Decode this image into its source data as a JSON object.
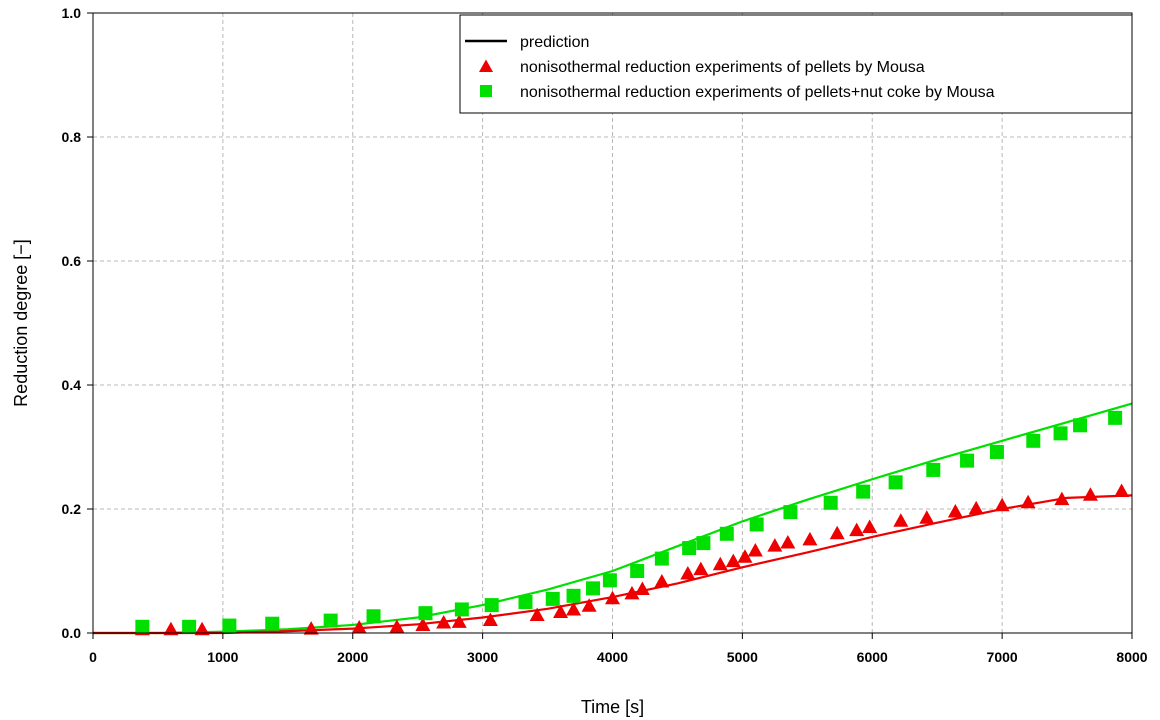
{
  "chart_data": {
    "type": "scatter",
    "xlabel": "Time [s]",
    "ylabel": "Reduction degree [−]",
    "xlim": [
      0,
      8000
    ],
    "ylim": [
      0,
      1.0
    ],
    "x_ticks": [
      0,
      1000,
      2000,
      3000,
      4000,
      5000,
      6000,
      7000,
      8000
    ],
    "x_tick_labels": [
      "0",
      "1000",
      "2000",
      "3000",
      "4000",
      "5000",
      "6000",
      "7000",
      "8000"
    ],
    "y_ticks": [
      0,
      0.2,
      0.4,
      0.6,
      0.8,
      1.0
    ],
    "y_tick_labels": [
      "0.0",
      "0.2",
      "0.4",
      "0.6",
      "0.8",
      "1.0"
    ],
    "grid": true,
    "legend_position": "top-right",
    "legend": [
      {
        "label": "prediction",
        "marker": "line",
        "color": "#000000"
      },
      {
        "label": "nonisothermal reduction experiments of pellets by Mousa",
        "marker": "triangle",
        "color": "#ee0000"
      },
      {
        "label": "nonisothermal reduction experiments of pellets+nut coke by Mousa",
        "marker": "square",
        "color": "#00e000"
      }
    ],
    "series": [
      {
        "kind": "line",
        "color": "#00e000",
        "x": [
          0,
          500,
          1000,
          1500,
          2000,
          2500,
          3000,
          3500,
          4000,
          4500,
          5000,
          5500,
          6000,
          6500,
          7000,
          7500,
          8000
        ],
        "y": [
          0,
          0.0,
          0.002,
          0.006,
          0.013,
          0.025,
          0.045,
          0.07,
          0.1,
          0.14,
          0.18,
          0.215,
          0.248,
          0.28,
          0.31,
          0.34,
          0.37
        ]
      },
      {
        "kind": "line",
        "color": "#ee0000",
        "x": [
          0,
          500,
          1000,
          1500,
          2000,
          2500,
          3000,
          3500,
          4000,
          4500,
          5000,
          5500,
          6000,
          6500,
          7000,
          7500,
          8000
        ],
        "y": [
          0,
          0.0,
          0.0,
          0.003,
          0.007,
          0.014,
          0.025,
          0.039,
          0.058,
          0.08,
          0.106,
          0.13,
          0.155,
          0.178,
          0.2,
          0.218,
          0.222
        ]
      },
      {
        "kind": "scatter",
        "marker": "triangle",
        "color": "#ee0000",
        "x": [
          380,
          600,
          840,
          1680,
          2050,
          2340,
          2540,
          2700,
          2820,
          3060,
          3420,
          3600,
          3700,
          3820,
          4000,
          4150,
          4230,
          4380,
          4580,
          4680,
          4830,
          4930,
          5020,
          5100,
          5250,
          5350,
          5520,
          5730,
          5880,
          5980,
          6220,
          6420,
          6640,
          6800,
          7000,
          7200,
          7460,
          7680,
          7920
        ],
        "y": [
          0.005,
          0.005,
          0.005,
          0.006,
          0.008,
          0.009,
          0.012,
          0.016,
          0.017,
          0.02,
          0.028,
          0.033,
          0.037,
          0.043,
          0.055,
          0.063,
          0.07,
          0.082,
          0.095,
          0.102,
          0.11,
          0.115,
          0.122,
          0.132,
          0.14,
          0.145,
          0.15,
          0.16,
          0.165,
          0.17,
          0.18,
          0.185,
          0.195,
          0.2,
          0.205,
          0.21,
          0.215,
          0.222,
          0.228
        ]
      },
      {
        "kind": "scatter",
        "marker": "square",
        "color": "#00e000",
        "x": [
          380,
          740,
          1050,
          1380,
          1830,
          2160,
          2560,
          2840,
          3070,
          3330,
          3540,
          3700,
          3850,
          3980,
          4190,
          4380,
          4590,
          4700,
          4880,
          5110,
          5370,
          5680,
          5930,
          6180,
          6470,
          6730,
          6960,
          7240,
          7450,
          7600,
          7870
        ],
        "y": [
          0.01,
          0.01,
          0.012,
          0.015,
          0.02,
          0.027,
          0.032,
          0.038,
          0.045,
          0.05,
          0.055,
          0.06,
          0.072,
          0.085,
          0.1,
          0.12,
          0.137,
          0.145,
          0.16,
          0.175,
          0.195,
          0.21,
          0.228,
          0.243,
          0.263,
          0.278,
          0.292,
          0.31,
          0.322,
          0.335,
          0.347
        ]
      }
    ]
  }
}
